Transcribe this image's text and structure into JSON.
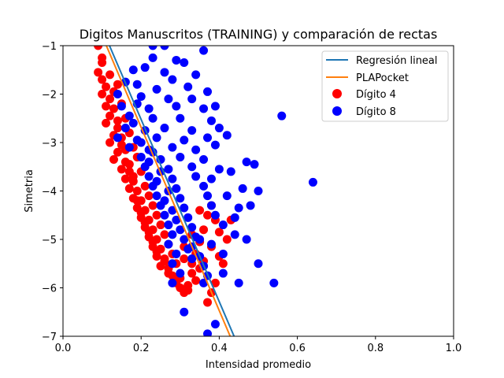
{
  "chart_data": {
    "type": "scatter",
    "title": "Digitos Manuscritos (TRAINING) y comparación de rectas",
    "xlabel": "Intensidad promedio",
    "ylabel": "Simetria",
    "xlim": [
      0.0,
      1.0
    ],
    "ylim": [
      -7,
      -1
    ],
    "xticks": [
      "0.0",
      "0.2",
      "0.4",
      "0.6",
      "0.8",
      "1.0"
    ],
    "yticks": [
      "−1",
      "−2",
      "−3",
      "−4",
      "−5",
      "−6",
      "−7"
    ],
    "grid": false,
    "legend_position": "top-right",
    "colors": {
      "regression": "#1f77b4",
      "pla": "#ff7f0e",
      "digit4": "#ff0000",
      "digit8": "#0000ff"
    },
    "lines": [
      {
        "name": "Regresión lineal",
        "points": [
          [
            0.119,
            -1.0
          ],
          [
            0.438,
            -7.0
          ]
        ]
      },
      {
        "name": "PLAPocket",
        "points": [
          [
            0.111,
            -1.0
          ],
          [
            0.428,
            -7.0
          ]
        ]
      }
    ],
    "scatter": [
      {
        "name": "Dígito 4",
        "points": [
          [
            0.09,
            -1.0
          ],
          [
            0.1,
            -1.25
          ],
          [
            0.1,
            -1.35
          ],
          [
            0.09,
            -1.55
          ],
          [
            0.1,
            -1.7
          ],
          [
            0.11,
            -1.85
          ],
          [
            0.1,
            -2.0
          ],
          [
            0.12,
            -2.1
          ],
          [
            0.13,
            -2.3
          ],
          [
            0.12,
            -2.45
          ],
          [
            0.11,
            -2.6
          ],
          [
            0.14,
            -2.7
          ],
          [
            0.13,
            -2.85
          ],
          [
            0.12,
            -3.0
          ],
          [
            0.15,
            -3.05
          ],
          [
            0.14,
            -3.2
          ],
          [
            0.13,
            -3.35
          ],
          [
            0.16,
            -3.4
          ],
          [
            0.15,
            -3.55
          ],
          [
            0.17,
            -3.6
          ],
          [
            0.16,
            -3.75
          ],
          [
            0.18,
            -3.8
          ],
          [
            0.17,
            -3.95
          ],
          [
            0.19,
            -4.0
          ],
          [
            0.18,
            -4.15
          ],
          [
            0.2,
            -4.2
          ],
          [
            0.19,
            -4.35
          ],
          [
            0.21,
            -4.4
          ],
          [
            0.2,
            -4.55
          ],
          [
            0.22,
            -4.6
          ],
          [
            0.21,
            -4.75
          ],
          [
            0.23,
            -4.8
          ],
          [
            0.22,
            -4.95
          ],
          [
            0.24,
            -5.0
          ],
          [
            0.23,
            -5.15
          ],
          [
            0.25,
            -5.2
          ],
          [
            0.24,
            -5.35
          ],
          [
            0.26,
            -5.4
          ],
          [
            0.25,
            -5.55
          ],
          [
            0.27,
            -5.6
          ],
          [
            0.28,
            -5.75
          ],
          [
            0.29,
            -5.9
          ],
          [
            0.3,
            -6.0
          ],
          [
            0.31,
            -6.1
          ],
          [
            0.3,
            -5.8
          ],
          [
            0.32,
            -5.95
          ],
          [
            0.33,
            -5.5
          ],
          [
            0.34,
            -5.3
          ],
          [
            0.35,
            -5.05
          ],
          [
            0.36,
            -4.8
          ],
          [
            0.37,
            -4.5
          ],
          [
            0.38,
            -4.3
          ],
          [
            0.39,
            -4.6
          ],
          [
            0.4,
            -4.85
          ],
          [
            0.42,
            -5.0
          ],
          [
            0.41,
            -5.5
          ],
          [
            0.38,
            -6.1
          ],
          [
            0.37,
            -6.3
          ],
          [
            0.39,
            -5.9
          ],
          [
            0.14,
            -1.8
          ],
          [
            0.15,
            -2.2
          ],
          [
            0.16,
            -2.5
          ],
          [
            0.17,
            -2.8
          ],
          [
            0.18,
            -3.1
          ],
          [
            0.19,
            -3.3
          ],
          [
            0.2,
            -3.6
          ],
          [
            0.21,
            -3.9
          ],
          [
            0.22,
            -4.1
          ],
          [
            0.23,
            -4.3
          ],
          [
            0.24,
            -4.5
          ],
          [
            0.25,
            -4.7
          ],
          [
            0.26,
            -4.9
          ],
          [
            0.27,
            -5.1
          ],
          [
            0.28,
            -5.3
          ],
          [
            0.29,
            -5.5
          ],
          [
            0.31,
            -5.4
          ],
          [
            0.33,
            -5.7
          ],
          [
            0.35,
            -5.6
          ],
          [
            0.12,
            -1.6
          ],
          [
            0.13,
            -1.95
          ],
          [
            0.11,
            -2.25
          ],
          [
            0.14,
            -2.55
          ],
          [
            0.15,
            -2.9
          ],
          [
            0.16,
            -3.15
          ],
          [
            0.17,
            -3.45
          ],
          [
            0.18,
            -3.7
          ],
          [
            0.19,
            -4.2
          ],
          [
            0.2,
            -4.45
          ],
          [
            0.21,
            -4.65
          ],
          [
            0.22,
            -4.85
          ],
          [
            0.23,
            -5.05
          ],
          [
            0.24,
            -5.25
          ],
          [
            0.26,
            -5.45
          ],
          [
            0.27,
            -5.7
          ],
          [
            0.29,
            -5.85
          ],
          [
            0.32,
            -6.05
          ],
          [
            0.34,
            -5.85
          ],
          [
            0.36,
            -5.45
          ],
          [
            0.38,
            -5.15
          ],
          [
            0.4,
            -5.35
          ],
          [
            0.43,
            -4.6
          ],
          [
            0.35,
            -4.4
          ],
          [
            0.33,
            -4.9
          ],
          [
            0.31,
            -5.15
          ]
        ]
      },
      {
        "name": "Dígito 8",
        "points": [
          [
            0.23,
            -1.0
          ],
          [
            0.26,
            -1.0
          ],
          [
            0.36,
            -1.1
          ],
          [
            0.23,
            -1.25
          ],
          [
            0.29,
            -1.3
          ],
          [
            0.31,
            -1.35
          ],
          [
            0.18,
            -1.5
          ],
          [
            0.21,
            -1.45
          ],
          [
            0.26,
            -1.55
          ],
          [
            0.34,
            -1.6
          ],
          [
            0.28,
            -1.7
          ],
          [
            0.16,
            -1.75
          ],
          [
            0.19,
            -1.8
          ],
          [
            0.24,
            -1.9
          ],
          [
            0.32,
            -1.85
          ],
          [
            0.37,
            -1.95
          ],
          [
            0.14,
            -2.0
          ],
          [
            0.2,
            -2.05
          ],
          [
            0.27,
            -2.1
          ],
          [
            0.33,
            -2.1
          ],
          [
            0.15,
            -2.25
          ],
          [
            0.22,
            -2.3
          ],
          [
            0.29,
            -2.25
          ],
          [
            0.36,
            -2.3
          ],
          [
            0.39,
            -2.25
          ],
          [
            0.56,
            -2.45
          ],
          [
            0.17,
            -2.45
          ],
          [
            0.23,
            -2.5
          ],
          [
            0.3,
            -2.5
          ],
          [
            0.38,
            -2.55
          ],
          [
            0.16,
            -2.7
          ],
          [
            0.21,
            -2.75
          ],
          [
            0.26,
            -2.7
          ],
          [
            0.33,
            -2.75
          ],
          [
            0.4,
            -2.7
          ],
          [
            0.14,
            -2.9
          ],
          [
            0.19,
            -2.95
          ],
          [
            0.24,
            -2.9
          ],
          [
            0.31,
            -2.95
          ],
          [
            0.37,
            -2.9
          ],
          [
            0.42,
            -2.85
          ],
          [
            0.17,
            -3.1
          ],
          [
            0.22,
            -3.15
          ],
          [
            0.28,
            -3.1
          ],
          [
            0.34,
            -3.15
          ],
          [
            0.39,
            -3.05
          ],
          [
            0.2,
            -3.3
          ],
          [
            0.25,
            -3.35
          ],
          [
            0.3,
            -3.3
          ],
          [
            0.36,
            -3.35
          ],
          [
            0.47,
            -3.4
          ],
          [
            0.49,
            -3.45
          ],
          [
            0.21,
            -3.5
          ],
          [
            0.27,
            -3.55
          ],
          [
            0.33,
            -3.5
          ],
          [
            0.4,
            -3.55
          ],
          [
            0.43,
            -3.6
          ],
          [
            0.22,
            -3.7
          ],
          [
            0.28,
            -3.75
          ],
          [
            0.34,
            -3.7
          ],
          [
            0.38,
            -3.75
          ],
          [
            0.64,
            -3.82
          ],
          [
            0.23,
            -3.9
          ],
          [
            0.29,
            -3.95
          ],
          [
            0.36,
            -3.9
          ],
          [
            0.46,
            -3.95
          ],
          [
            0.5,
            -4.0
          ],
          [
            0.24,
            -4.1
          ],
          [
            0.3,
            -4.15
          ],
          [
            0.37,
            -4.1
          ],
          [
            0.42,
            -4.1
          ],
          [
            0.25,
            -4.3
          ],
          [
            0.31,
            -4.35
          ],
          [
            0.38,
            -4.3
          ],
          [
            0.45,
            -4.35
          ],
          [
            0.48,
            -4.3
          ],
          [
            0.26,
            -4.5
          ],
          [
            0.32,
            -4.55
          ],
          [
            0.39,
            -4.5
          ],
          [
            0.44,
            -4.55
          ],
          [
            0.27,
            -4.7
          ],
          [
            0.33,
            -4.75
          ],
          [
            0.41,
            -4.7
          ],
          [
            0.28,
            -4.9
          ],
          [
            0.34,
            -4.95
          ],
          [
            0.44,
            -4.9
          ],
          [
            0.47,
            -5.0
          ],
          [
            0.27,
            -5.1
          ],
          [
            0.33,
            -5.15
          ],
          [
            0.38,
            -5.1
          ],
          [
            0.29,
            -5.3
          ],
          [
            0.35,
            -5.35
          ],
          [
            0.41,
            -5.3
          ],
          [
            0.28,
            -5.5
          ],
          [
            0.36,
            -5.55
          ],
          [
            0.5,
            -5.5
          ],
          [
            0.3,
            -5.7
          ],
          [
            0.37,
            -5.75
          ],
          [
            0.41,
            -5.7
          ],
          [
            0.28,
            -5.9
          ],
          [
            0.36,
            -5.9
          ],
          [
            0.45,
            -5.9
          ],
          [
            0.54,
            -5.9
          ],
          [
            0.31,
            -6.5
          ],
          [
            0.39,
            -6.75
          ],
          [
            0.37,
            -6.95
          ],
          [
            0.18,
            -2.6
          ],
          [
            0.2,
            -3.0
          ],
          [
            0.22,
            -3.4
          ],
          [
            0.24,
            -3.8
          ],
          [
            0.26,
            -4.2
          ],
          [
            0.28,
            -4.4
          ],
          [
            0.3,
            -4.8
          ],
          [
            0.32,
            -5.2
          ],
          [
            0.35,
            -5.0
          ],
          [
            0.19,
            -2.2
          ],
          [
            0.23,
            -3.2
          ],
          [
            0.25,
            -3.6
          ],
          [
            0.27,
            -4.0
          ],
          [
            0.29,
            -4.6
          ],
          [
            0.31,
            -5.0
          ],
          [
            0.33,
            -5.4
          ]
        ]
      }
    ]
  }
}
